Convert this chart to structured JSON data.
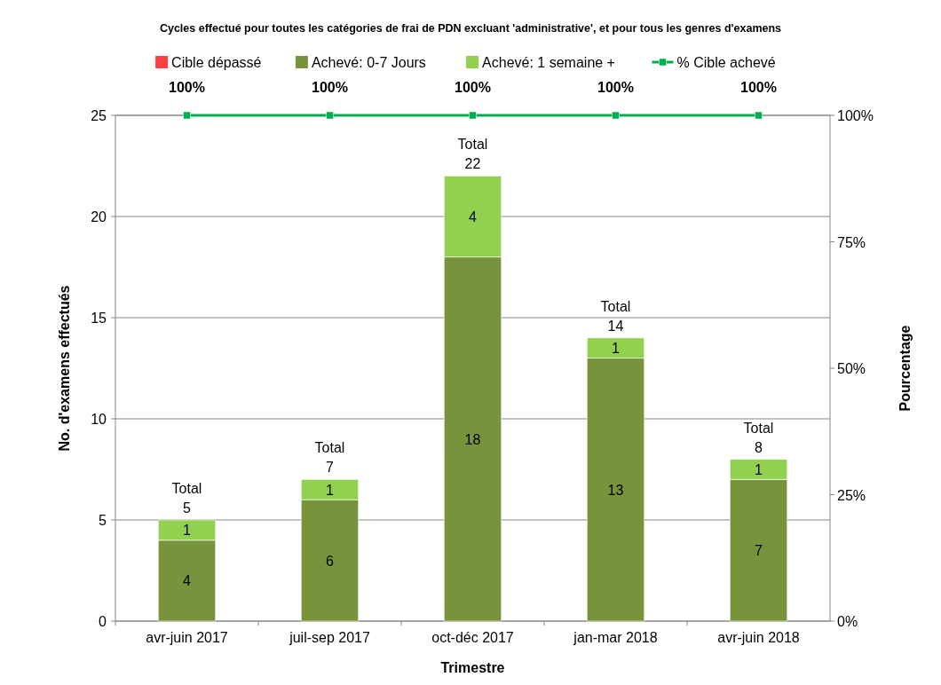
{
  "chart_data": {
    "type": "bar",
    "title": "Cycles effectué pour toutes les catégories de frai de PDN excluant 'administrative', et pour tous les genres d'examens",
    "xlabel": "Trimestre",
    "ylabel": "No. d'examens effectués",
    "y2label": "Pourcentage",
    "categories": [
      "avr-juin 2017",
      "juil-sep 2017",
      "oct-déc 2017",
      "jan-mar 2018",
      "avr-juin 2018"
    ],
    "stacked": true,
    "series": [
      {
        "name": "Cible dépassé",
        "color": "#ff4040",
        "values": [
          null,
          null,
          null,
          null,
          null
        ]
      },
      {
        "name": "Achevé: 0-7 Jours",
        "color": "#77933c",
        "values": [
          4,
          6,
          18,
          13,
          7
        ],
        "value_labels": [
          "4",
          "6",
          "18",
          "13",
          "7"
        ]
      },
      {
        "name": "Achevé: 1 semaine +",
        "color": "#92d050",
        "values": [
          1,
          1,
          4,
          1,
          1
        ],
        "value_labels": [
          "1",
          "1",
          "4",
          "1",
          "1"
        ]
      },
      {
        "name": "% Cible achevé",
        "type": "line",
        "axis": "y2",
        "color": "#00b050",
        "marker": "square",
        "values": [
          100,
          100,
          100,
          100,
          100
        ],
        "value_labels": [
          "100%",
          "100%",
          "100%",
          "100%",
          "100%"
        ]
      }
    ],
    "totals": [
      "Total\n5",
      "Total\n7",
      "Total\n22",
      "Total\n14",
      "Total\n8"
    ],
    "ylim": [
      0,
      25
    ],
    "yticks": [
      0,
      5,
      10,
      15,
      20,
      25
    ],
    "y2lim": [
      0,
      100
    ],
    "y2ticks": [
      {
        "value": 0,
        "label": "0%"
      },
      {
        "value": 25,
        "label": "25%"
      },
      {
        "value": 50,
        "label": "50%"
      },
      {
        "value": 75,
        "label": "75%"
      },
      {
        "value": 100,
        "label": "100%"
      }
    ],
    "grid": "y",
    "legend": "top"
  }
}
